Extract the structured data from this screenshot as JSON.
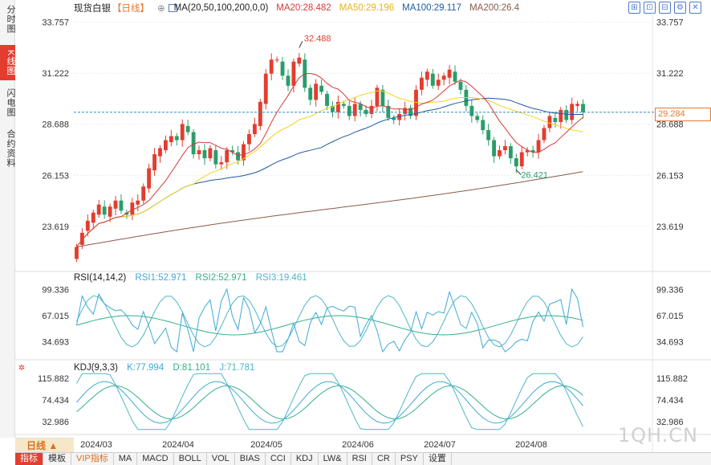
{
  "left_tabs": [
    {
      "label": "分时图",
      "active": false
    },
    {
      "label": "K线图",
      "active": true
    },
    {
      "label": "闪电图",
      "active": false
    },
    {
      "label": "合约资料",
      "active": false
    }
  ],
  "header": {
    "name": "现货白银",
    "period": "【日线】",
    "ma_label": "MA(20,50,100,200,0,0)",
    "ma20": "MA20:28.482",
    "ma50": "MA50:29.196",
    "ma100": "MA100:29.117",
    "ma200": "MA200:26.4"
  },
  "toolbar": {
    "icons": [
      "expand-icon",
      "reset-icon",
      "collapse-icon",
      "settings-icon",
      "close-icon"
    ]
  },
  "rsi": {
    "label": "RSI(14,14,2)",
    "rsi1": "RSI1:52.971",
    "rsi2": "RSI2:52.971",
    "rsi3": "RSI3:19.461"
  },
  "kdj": {
    "label": "KDJ(9,3,3)",
    "k": "K:77.994",
    "d": "D:81.101",
    "j": "J:71.781"
  },
  "current_price": "29.284",
  "colors": {
    "up": "#e33d2f",
    "down": "#2a9d6a",
    "ma20": "#d63a3a",
    "ma50": "#f2d21b",
    "ma100": "#1f5aa0",
    "ma200": "#8b5a4a",
    "rsi1": "#3fa9d6",
    "rsi2": "#34b08a",
    "rsi3": "#4fb5c8",
    "price_line": "#2a8fb8"
  },
  "bottom": {
    "period_selector": "日线 ▲",
    "buttons": [
      "指标",
      "模板",
      "VIP指标",
      "MA",
      "MACD",
      "BOLL",
      "VOL",
      "BIAS",
      "CCI",
      "KDJ",
      "LW&",
      "RSI",
      "CR",
      "PSY",
      "设置"
    ],
    "active_button": "指标"
  },
  "watermark": "1QH.CN",
  "chart_data": [
    {
      "type": "candlestick",
      "title": "现货白银【日线】",
      "y_ticks": [
        33.757,
        31.222,
        28.688,
        26.153,
        23.619
      ],
      "y_tick_labels": [
        "33.757",
        "31.222",
        "28.688",
        "26.153",
        "23.619"
      ],
      "ylim": [
        21.5,
        34.3
      ],
      "x_tick_labels": [
        "2024/03",
        "2024/04",
        "2024/05",
        "2024/06",
        "2024/07",
        "2024/08"
      ],
      "annotations": {
        "high": "32.488",
        "low": "26.421"
      },
      "current_price": 29.284,
      "ohlc_keypoints": [
        [
          22.0,
          22.6
        ],
        [
          22.7,
          23.3
        ],
        [
          23.4,
          23.9
        ],
        [
          23.8,
          24.3
        ],
        [
          24.2,
          24.7
        ],
        [
          24.6,
          24.2
        ],
        [
          24.1,
          24.6
        ],
        [
          24.5,
          24.9
        ],
        [
          24.9,
          24.4
        ],
        [
          24.3,
          24.2
        ],
        [
          24.2,
          24.8
        ],
        [
          24.7,
          24.9
        ],
        [
          24.9,
          25.6
        ],
        [
          25.5,
          26.5
        ],
        [
          26.4,
          27.2
        ],
        [
          27.1,
          27.5
        ],
        [
          27.4,
          27.9
        ],
        [
          27.8,
          28.1
        ],
        [
          28.1,
          27.9
        ],
        [
          27.9,
          28.7
        ],
        [
          28.6,
          28.3
        ],
        [
          28.3,
          27.2
        ],
        [
          27.2,
          27.4
        ],
        [
          27.4,
          27.0
        ],
        [
          27.0,
          27.5
        ],
        [
          27.4,
          26.7
        ],
        [
          26.7,
          26.8
        ],
        [
          26.8,
          27.4
        ],
        [
          27.4,
          27.3
        ],
        [
          27.3,
          26.9
        ],
        [
          26.9,
          27.7
        ],
        [
          27.7,
          28.2
        ],
        [
          28.2,
          28.7
        ],
        [
          28.6,
          29.8
        ],
        [
          29.7,
          31.2
        ],
        [
          31.2,
          31.9
        ],
        [
          31.9,
          31.9
        ],
        [
          31.8,
          31.1
        ],
        [
          31.1,
          30.6
        ],
        [
          30.6,
          31.8
        ],
        [
          31.7,
          32.0
        ],
        [
          31.9,
          30.5
        ],
        [
          30.5,
          29.9
        ],
        [
          29.9,
          30.7
        ],
        [
          30.6,
          30.3
        ],
        [
          30.2,
          29.6
        ],
        [
          29.6,
          29.3
        ],
        [
          29.3,
          29.8
        ],
        [
          29.7,
          29.6
        ],
        [
          29.6,
          29.1
        ],
        [
          29.1,
          29.7
        ],
        [
          29.7,
          29.4
        ],
        [
          29.4,
          29.2
        ],
        [
          29.2,
          29.6
        ],
        [
          29.6,
          30.5
        ],
        [
          30.4,
          29.6
        ],
        [
          29.6,
          29.0
        ],
        [
          29.0,
          28.9
        ],
        [
          28.9,
          29.2
        ],
        [
          29.2,
          29.5
        ],
        [
          29.5,
          29.1
        ],
        [
          29.1,
          30.4
        ],
        [
          30.4,
          31.0
        ],
        [
          30.9,
          31.3
        ],
        [
          31.2,
          30.6
        ],
        [
          30.6,
          30.9
        ],
        [
          30.9,
          31.1
        ],
        [
          31.0,
          31.4
        ],
        [
          31.3,
          30.8
        ],
        [
          30.8,
          30.4
        ],
        [
          30.4,
          29.6
        ],
        [
          29.6,
          29.1
        ],
        [
          29.1,
          28.9
        ],
        [
          28.9,
          28.4
        ],
        [
          28.4,
          27.9
        ],
        [
          27.9,
          27.1
        ],
        [
          27.1,
          27.4
        ],
        [
          27.4,
          27.6
        ],
        [
          27.6,
          27.0
        ],
        [
          27.0,
          26.6
        ],
        [
          26.6,
          27.3
        ],
        [
          27.3,
          27.4
        ],
        [
          27.4,
          27.3
        ],
        [
          27.3,
          27.9
        ],
        [
          27.9,
          28.5
        ],
        [
          28.5,
          29.1
        ],
        [
          29.0,
          28.8
        ],
        [
          28.8,
          29.4
        ],
        [
          29.4,
          28.9
        ],
        [
          28.9,
          29.7
        ],
        [
          29.6,
          29.7
        ],
        [
          29.7,
          29.3
        ]
      ]
    },
    {
      "type": "line",
      "title": "RSI(14,14,2)",
      "y_tick_labels": [
        "99.336",
        "67.015",
        "34.693"
      ],
      "y_ticks": [
        99.336,
        67.015,
        34.693
      ],
      "ylim": [
        15,
        110
      ],
      "series": [
        {
          "name": "RSI1",
          "last": 52.971
        },
        {
          "name": "RSI2",
          "last": 52.971
        },
        {
          "name": "RSI3",
          "last": 19.461
        }
      ]
    },
    {
      "type": "line",
      "title": "KDJ(9,3,3)",
      "y_tick_labels": [
        "115.882",
        "74.434",
        "32.986"
      ],
      "y_ticks": [
        115.882,
        74.434,
        32.986
      ],
      "ylim": [
        10,
        130
      ],
      "series": [
        {
          "name": "K",
          "last": 77.994
        },
        {
          "name": "D",
          "last": 81.101
        },
        {
          "name": "J",
          "last": 71.781
        }
      ]
    }
  ]
}
